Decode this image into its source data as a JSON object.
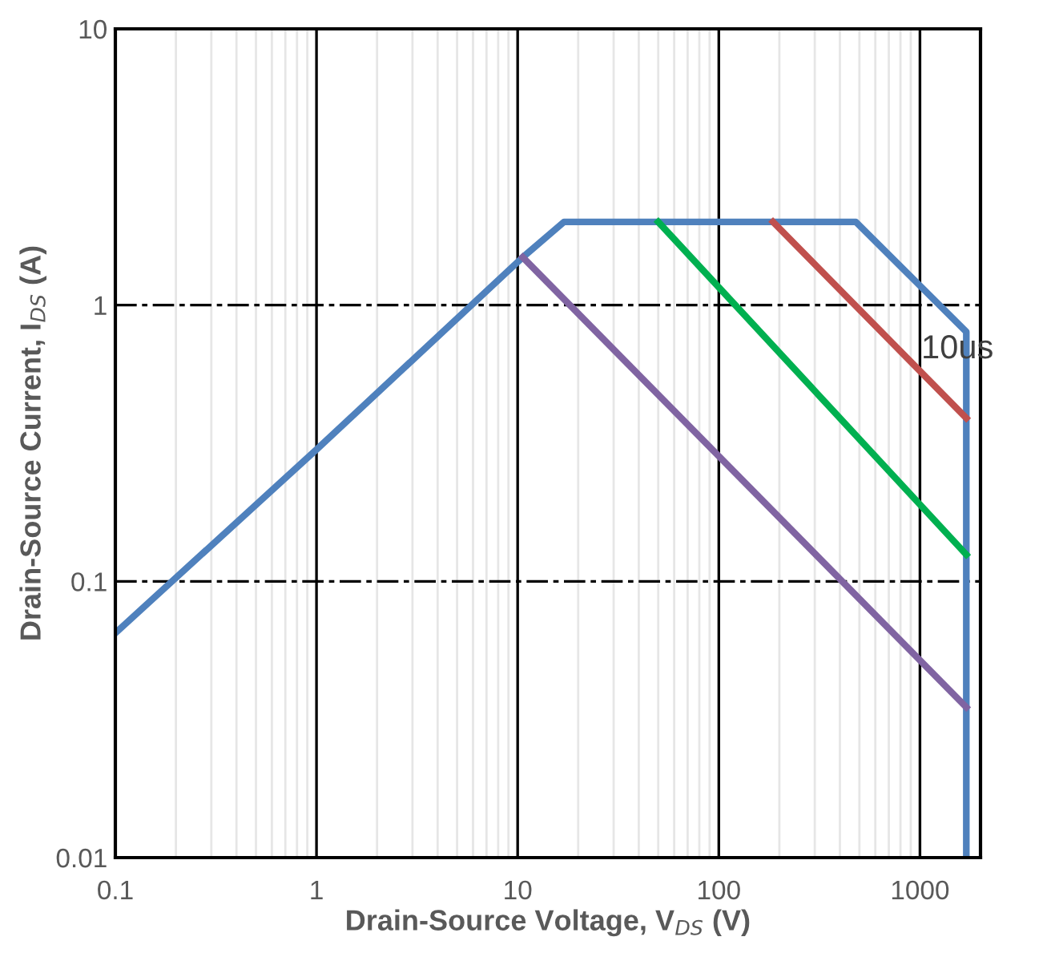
{
  "chart_data": {
    "type": "line",
    "xlabel": "Drain-Source Voltage, V$_{DS}$ (V)",
    "ylabel": "Drain-Source Current, I$_{DS}$ (A)",
    "log": "xy",
    "xlim": [
      0.1,
      2000
    ],
    "ylim": [
      0.01,
      10
    ],
    "xticks": [
      0.1,
      1,
      10,
      100,
      1000
    ],
    "yticks": [
      0.01,
      0.1,
      1,
      10
    ],
    "grid": true,
    "marker": "none",
    "line_style": "solid",
    "series": [
      {
        "color": "#4f81bd",
        "x": [
          0.1,
          1,
          10.6,
          17,
          480,
          1700,
          1700
        ],
        "values": [
          0.065,
          0.3,
          1.49,
          2,
          2,
          0.8,
          0.01
        ]
      },
      {
        "color": "#c0504d",
        "x": [
          186,
          1700
        ],
        "values": [
          2,
          0.39
        ]
      },
      {
        "color": "#00b050",
        "x": [
          50,
          1700
        ],
        "values": [
          2,
          0.125
        ]
      },
      {
        "color": "#8064a2",
        "x": [
          10.6,
          1700
        ],
        "values": [
          1.49,
          0.035
        ]
      }
    ],
    "annotations": [
      {
        "text": "10us",
        "x": 1700,
        "y": 0.8
      }
    ]
  }
}
